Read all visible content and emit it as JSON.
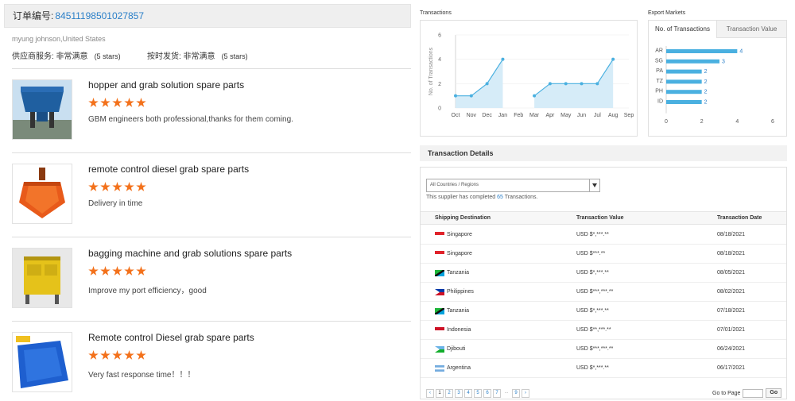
{
  "order": {
    "label": "订单编号:",
    "number": "84511198501027857"
  },
  "reviewer": "myung johnson,United States",
  "ratings": [
    {
      "label": "供应商服务: 非常满意",
      "stars": "(5 stars)"
    },
    {
      "label": "按时发货: 非常满意",
      "stars": "(5 stars)"
    }
  ],
  "reviews": [
    {
      "title": "hopper and grab solution spare parts",
      "stars": 5,
      "comment": "GBM engineers both professional,thanks for them coming."
    },
    {
      "title": "remote control diesel grab spare parts",
      "stars": 5,
      "comment": "Delivery in time"
    },
    {
      "title": "bagging machine and grab solutions spare parts",
      "stars": 5,
      "comment": "Improve my port efficiency，good"
    },
    {
      "title": "Remote control Diesel grab spare parts",
      "stars": 5,
      "comment": "Very fast response time！！！"
    }
  ],
  "transactions_label": "Transactions",
  "export_label": "Export Markets",
  "chart_data": [
    {
      "type": "line",
      "title": "Transactions",
      "ylabel": "No. of Transactions",
      "x": [
        "Oct",
        "Nov",
        "Dec",
        "Jan",
        "Feb",
        "Mar",
        "Apr",
        "May",
        "Jun",
        "Jul",
        "Aug",
        "Sep"
      ],
      "series": [
        {
          "values": [
            1,
            1,
            2,
            4,
            null,
            1,
            2,
            2,
            2,
            2,
            4,
            null
          ]
        }
      ],
      "ylim": [
        0,
        6
      ],
      "yticks": [
        0,
        2,
        4,
        6
      ],
      "grid": true
    },
    {
      "type": "bar",
      "orientation": "horizontal",
      "categories": [
        "AR",
        "SG",
        "PA",
        "TZ",
        "PH",
        "ID"
      ],
      "values": [
        4,
        3,
        2,
        2,
        2,
        2
      ],
      "xlim": [
        0,
        6
      ],
      "xticks": [
        0,
        2,
        4,
        6
      ],
      "color": "#4ab0e0"
    }
  ],
  "export_tabs": {
    "active": "No. of Transactions",
    "inactive": "Transaction Value"
  },
  "details": {
    "header": "Transaction Details",
    "select_value": "All Countries / Regions",
    "completed_prefix": "This supplier has completed",
    "completed_count": "65",
    "completed_suffix": "Transactions.",
    "columns": [
      "Shipping Destination",
      "Transaction Value",
      "Transaction Date"
    ],
    "rows": [
      {
        "flag": "sg",
        "dest": "Singapore",
        "value": "USD $*,***.**",
        "date": "08/18/2021"
      },
      {
        "flag": "sg",
        "dest": "Singapore",
        "value": "USD $***.**",
        "date": "08/18/2021"
      },
      {
        "flag": "tz",
        "dest": "Tanzania",
        "value": "USD $*,***.**",
        "date": "08/05/2021"
      },
      {
        "flag": "ph",
        "dest": "Philippines",
        "value": "USD $***,***.**",
        "date": "08/02/2021"
      },
      {
        "flag": "tz",
        "dest": "Tanzania",
        "value": "USD $*,***.**",
        "date": "07/18/2021"
      },
      {
        "flag": "id",
        "dest": "Indonesia",
        "value": "USD $**,***.**",
        "date": "07/01/2021"
      },
      {
        "flag": "dj",
        "dest": "Djibouti",
        "value": "USD $***,***.**",
        "date": "06/24/2021"
      },
      {
        "flag": "ar",
        "dest": "Argentina",
        "value": "USD $*,***.**",
        "date": "06/17/2021"
      }
    ],
    "pager": [
      "‹",
      "1",
      "2",
      "3",
      "4",
      "5",
      "6",
      "7",
      "...",
      "9",
      "›"
    ],
    "goto_label": "Go to Page",
    "go_button": "Go"
  },
  "colors": {
    "accent": "#2a7fc8",
    "star": "#f3711b",
    "line": "#4ab0e0",
    "area": "#d6ecf8"
  }
}
